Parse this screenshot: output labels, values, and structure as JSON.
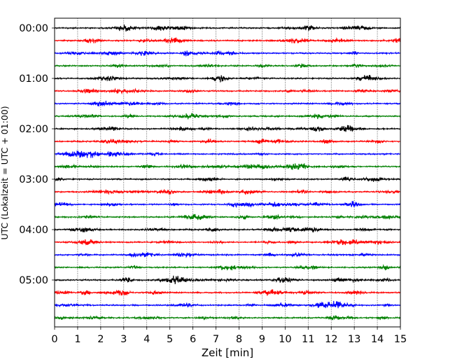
{
  "chart_data": {
    "type": "line",
    "title": "",
    "xlabel": "Zeit  [min]",
    "ylabel": "UTC (Lokalzeit = UTC + 01:00)",
    "xlim": [
      0,
      15
    ],
    "x_ticks": [
      "0",
      "1",
      "2",
      "3",
      "4",
      "5",
      "6",
      "7",
      "8",
      "9",
      "10",
      "11",
      "12",
      "13",
      "14",
      "15"
    ],
    "y_ticks": [
      "00:00",
      "01:00",
      "02:00",
      "03:00",
      "04:00",
      "05:00"
    ],
    "grid": "vertical dotted lines at each minute",
    "traces_per_hour": 4,
    "trace_minutes": 15,
    "colors": [
      "#000000",
      "#ff0000",
      "#0000ff",
      "#008000"
    ],
    "traces": [
      {
        "start": "00:00",
        "color": "#000000"
      },
      {
        "start": "00:15",
        "color": "#ff0000"
      },
      {
        "start": "00:30",
        "color": "#0000ff"
      },
      {
        "start": "00:45",
        "color": "#008000"
      },
      {
        "start": "01:00",
        "color": "#000000"
      },
      {
        "start": "01:15",
        "color": "#ff0000"
      },
      {
        "start": "01:30",
        "color": "#0000ff"
      },
      {
        "start": "01:45",
        "color": "#008000"
      },
      {
        "start": "02:00",
        "color": "#000000"
      },
      {
        "start": "02:15",
        "color": "#ff0000"
      },
      {
        "start": "02:30",
        "color": "#0000ff"
      },
      {
        "start": "02:45",
        "color": "#008000"
      },
      {
        "start": "03:00",
        "color": "#000000"
      },
      {
        "start": "03:15",
        "color": "#ff0000"
      },
      {
        "start": "03:30",
        "color": "#0000ff"
      },
      {
        "start": "03:45",
        "color": "#008000"
      },
      {
        "start": "04:00",
        "color": "#000000"
      },
      {
        "start": "04:15",
        "color": "#ff0000"
      },
      {
        "start": "04:30",
        "color": "#0000ff"
      },
      {
        "start": "04:45",
        "color": "#008000"
      },
      {
        "start": "05:00",
        "color": "#000000"
      },
      {
        "start": "05:15",
        "color": "#ff0000"
      },
      {
        "start": "05:30",
        "color": "#0000ff"
      },
      {
        "start": "05:45",
        "color": "#008000"
      }
    ]
  }
}
